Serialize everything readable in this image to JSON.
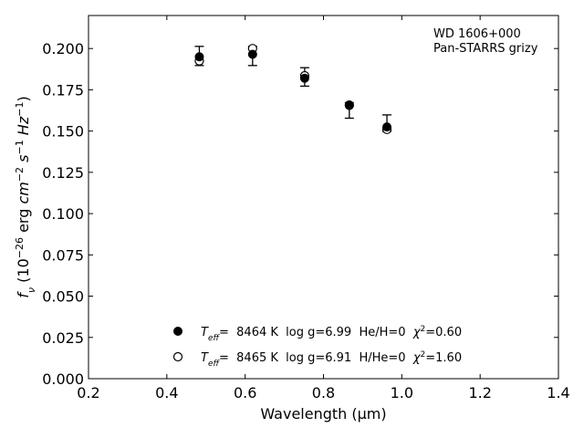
{
  "chart_data": {
    "type": "scatter",
    "xlabel": "Wavelength (μm)",
    "ylabel_parts": [
      "f",
      "ν",
      " (10",
      "−26",
      " erg ",
      "cm",
      "−2",
      " ",
      "s",
      "−1",
      " ",
      "Hz",
      "−1",
      ")"
    ],
    "xlim": [
      0.2,
      1.4
    ],
    "ylim": [
      0.0,
      0.22
    ],
    "xticks": [
      0.2,
      0.4,
      0.6,
      0.8,
      1.0,
      1.2,
      1.4
    ],
    "xtick_labels": [
      "0.2",
      "0.4",
      "0.6",
      "0.8",
      "1.0",
      "1.2",
      "1.4"
    ],
    "yticks": [
      0.0,
      0.025,
      0.05,
      0.075,
      0.1,
      0.125,
      0.15,
      0.175,
      0.2
    ],
    "ytick_labels": [
      "0.000",
      "0.025",
      "0.050",
      "0.075",
      "0.100",
      "0.125",
      "0.150",
      "0.175",
      "0.200"
    ],
    "annotation": [
      "WD 1606+000",
      "Pan-STARRS grizy"
    ],
    "observed": {
      "x": [
        0.483,
        0.619,
        0.752,
        0.866,
        0.962
      ],
      "y": [
        0.1955,
        0.1955,
        0.1828,
        0.1625,
        0.1548
      ],
      "yerr": [
        0.0058,
        0.0058,
        0.0056,
        0.0047,
        0.005
      ]
    },
    "series": [
      {
        "marker": "filled-circle",
        "x": [
          0.483,
          0.619,
          0.752,
          0.866,
          0.962
        ],
        "y": [
          0.195,
          0.1965,
          0.182,
          0.1655,
          0.1525
        ],
        "legend_parts": [
          "T",
          "eff",
          "=  8464 K  log g=6.99  He/H=0  ",
          "χ",
          "2",
          "=0.60"
        ]
      },
      {
        "marker": "open-circle",
        "x": [
          0.483,
          0.619,
          0.752,
          0.866,
          0.962
        ],
        "y": [
          0.1925,
          0.2,
          0.1835,
          0.1658,
          0.151
        ],
        "legend_parts": [
          "T",
          "eff",
          "=  8465 K  log g=6.91  H/He=0  ",
          "χ",
          "2",
          "=1.60"
        ]
      }
    ],
    "legend_placement": "lower-center",
    "grid": false
  }
}
